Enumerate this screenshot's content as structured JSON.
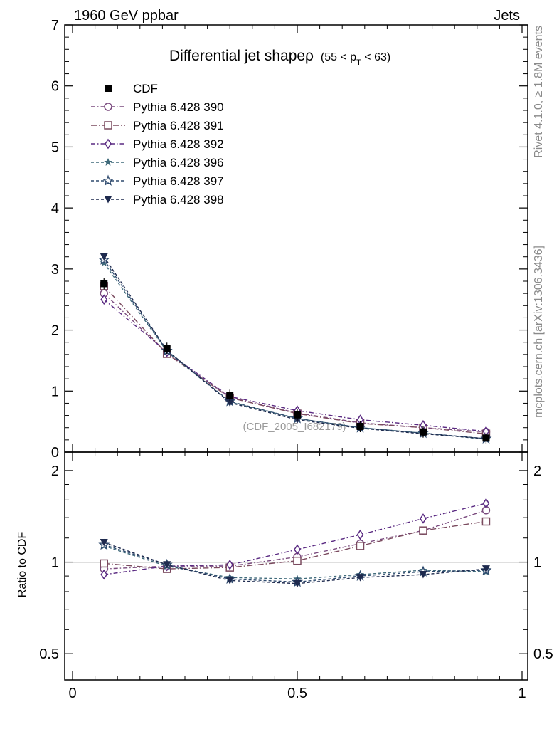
{
  "header": {
    "left": "1960 GeV ppbar",
    "right": "Jets"
  },
  "side_labels": {
    "rivet": "Rivet 4.1.0, ≥ 1.8M events",
    "mcplots": "mcplots.cern.ch [arXiv:1306.3436]"
  },
  "watermark": "(CDF_2005_I682179)",
  "chart_data": [
    {
      "type": "line",
      "panel": "main",
      "title": "Differential jet shapeρ",
      "title_sub": "(55 < p",
      "title_sub_index": "T",
      "title_sub_end": " < 63)",
      "xlabel": "",
      "ylabel": "",
      "xlim": [
        0,
        1
      ],
      "ylim": [
        0,
        7
      ],
      "yticks": [
        0,
        1,
        2,
        3,
        4,
        5,
        6,
        7
      ],
      "x": [
        0.07,
        0.21,
        0.35,
        0.5,
        0.64,
        0.78,
        0.92
      ],
      "series": [
        {
          "name": "CDF",
          "marker": "filled-square",
          "color": "#000000",
          "dash": "",
          "values": [
            2.76,
            1.7,
            0.93,
            0.61,
            0.42,
            0.33,
            0.23
          ]
        },
        {
          "name": "Pythia 6.428 390",
          "marker": "open-circle",
          "color": "#7a4a7e",
          "dash": "6,3,1.5,3",
          "values": [
            2.6,
            1.62,
            0.9,
            0.64,
            0.48,
            0.4,
            0.33
          ]
        },
        {
          "name": "Pythia 6.428 391",
          "marker": "open-square",
          "color": "#7a4a5e",
          "dash": "8,3,1.5,3",
          "values": [
            2.72,
            1.61,
            0.89,
            0.63,
            0.47,
            0.4,
            0.3
          ]
        },
        {
          "name": "Pythia 6.428 392",
          "marker": "open-diamond",
          "color": "#5a2a82",
          "dash": "6,3,1.5,3",
          "values": [
            2.5,
            1.64,
            0.91,
            0.68,
            0.53,
            0.44,
            0.34
          ]
        },
        {
          "name": "Pythia 6.428 396",
          "marker": "filled-star",
          "color": "#3f6a7a",
          "dash": "4,3",
          "values": [
            3.1,
            1.65,
            0.82,
            0.55,
            0.4,
            0.31,
            0.21
          ]
        },
        {
          "name": "Pythia 6.428 397",
          "marker": "open-star",
          "color": "#2e4a6e",
          "dash": "4,3",
          "values": [
            3.15,
            1.66,
            0.83,
            0.55,
            0.4,
            0.31,
            0.22
          ]
        },
        {
          "name": "Pythia 6.428 398",
          "marker": "filled-triangle-down",
          "color": "#1e2a4e",
          "dash": "4,3",
          "values": [
            3.2,
            1.67,
            0.81,
            0.53,
            0.39,
            0.3,
            0.22
          ]
        }
      ]
    },
    {
      "type": "line",
      "panel": "ratio",
      "ylabel": "Ratio to CDF",
      "xlabel": "",
      "xlim": [
        0,
        1
      ],
      "ylim": [
        0.41,
        2.3
      ],
      "yscale": "log",
      "yticks": [
        0.5,
        1,
        2
      ],
      "ytick_labels": [
        "0.5",
        "1",
        "2"
      ],
      "xticks": [
        0,
        0.5,
        1
      ],
      "xtick_labels": [
        "0",
        "0.5",
        "1"
      ],
      "x": [
        0.07,
        0.21,
        0.35,
        0.5,
        0.64,
        0.78,
        0.92
      ],
      "series": [
        {
          "name": "Pythia 6.428 390",
          "values": [
            0.95,
            0.97,
            0.97,
            1.04,
            1.15,
            1.27,
            1.48
          ]
        },
        {
          "name": "Pythia 6.428 391",
          "values": [
            0.99,
            0.95,
            0.96,
            1.01,
            1.13,
            1.27,
            1.36
          ]
        },
        {
          "name": "Pythia 6.428 392",
          "values": [
            0.91,
            0.97,
            0.98,
            1.1,
            1.23,
            1.39,
            1.56
          ]
        },
        {
          "name": "Pythia 6.428 396",
          "values": [
            1.13,
            0.97,
            0.89,
            0.88,
            0.91,
            0.94,
            0.93
          ]
        },
        {
          "name": "Pythia 6.428 397",
          "values": [
            1.14,
            0.98,
            0.88,
            0.86,
            0.9,
            0.93,
            0.94
          ]
        },
        {
          "name": "Pythia 6.428 398",
          "values": [
            1.16,
            0.98,
            0.87,
            0.85,
            0.89,
            0.91,
            0.95
          ]
        }
      ]
    }
  ]
}
